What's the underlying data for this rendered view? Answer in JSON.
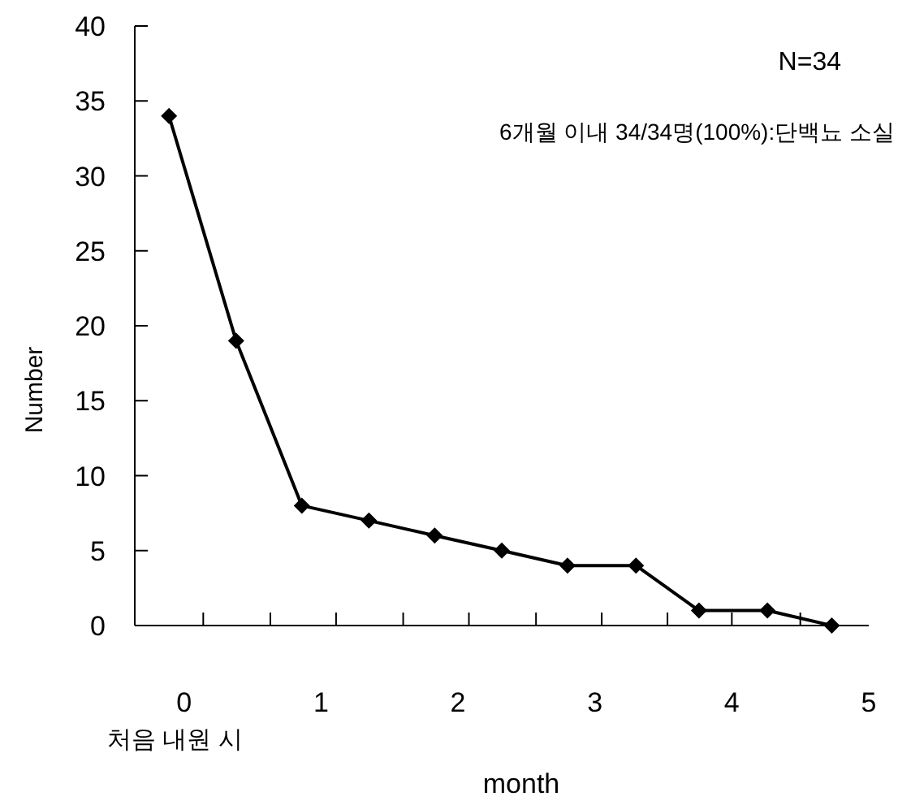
{
  "chart_data": {
    "type": "line",
    "xlabel": "month",
    "ylabel": "Number",
    "x": [
      -0.11,
      0.38,
      0.86,
      1.35,
      1.83,
      2.32,
      2.8,
      3.3,
      3.76,
      4.26,
      4.73
    ],
    "series": [
      {
        "color": "#000000",
        "values": [
          34,
          19,
          8,
          7,
          6,
          5,
          4,
          4,
          1,
          1,
          0
        ]
      }
    ],
    "xlim": [
      -0.36,
      5
    ],
    "xticks": [
      {
        "value": 0,
        "label": "0"
      },
      {
        "value": 1,
        "label": "1"
      },
      {
        "value": 2,
        "label": "2"
      },
      {
        "value": 3,
        "label": "3"
      },
      {
        "value": 4,
        "label": "4"
      },
      {
        "value": 5,
        "label": "5"
      },
      {
        "value": 0.14,
        "label": null
      },
      {
        "value": 0.63,
        "label": null
      },
      {
        "value": 1.11,
        "label": null
      },
      {
        "value": 1.6,
        "label": null
      },
      {
        "value": 2.08,
        "label": null
      },
      {
        "value": 2.57,
        "label": null
      },
      {
        "value": 3.05,
        "label": null
      },
      {
        "value": 3.53,
        "label": null
      },
      {
        "value": 4.0,
        "label": null
      },
      {
        "value": 4.5,
        "label": null
      }
    ],
    "ylim": [
      0,
      40
    ],
    "yticks": [
      0,
      5,
      10,
      15,
      20,
      25,
      30,
      35,
      40
    ],
    "marker": "diamond",
    "line_style": "solid",
    "grid": false,
    "annotations": [
      "N=34",
      "6개월 이내 34/34명(100%):단백뇨 소실",
      "처음 내원 시"
    ]
  }
}
